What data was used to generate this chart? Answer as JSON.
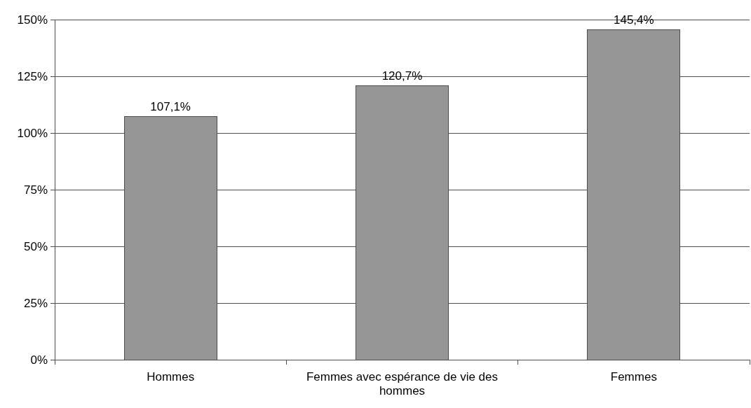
{
  "chart_data": {
    "type": "bar",
    "categories": [
      "Hommes",
      "Femmes avec espérance de vie des hommes",
      "Femmes"
    ],
    "values": [
      107.1,
      120.7,
      145.4
    ],
    "color": "#969696",
    "value_labels": [
      "107,1%",
      "120,7%",
      "145,4%"
    ],
    "ylim": [
      0,
      150
    ],
    "yticks": [
      {
        "value": 0,
        "label": "0%"
      },
      {
        "value": 25,
        "label": "25%"
      },
      {
        "value": 50,
        "label": "50%"
      },
      {
        "value": 75,
        "label": "75%"
      },
      {
        "value": 100,
        "label": "100%"
      },
      {
        "value": 125,
        "label": "125%"
      },
      {
        "value": 150,
        "label": "150%"
      }
    ],
    "grid": "y"
  }
}
